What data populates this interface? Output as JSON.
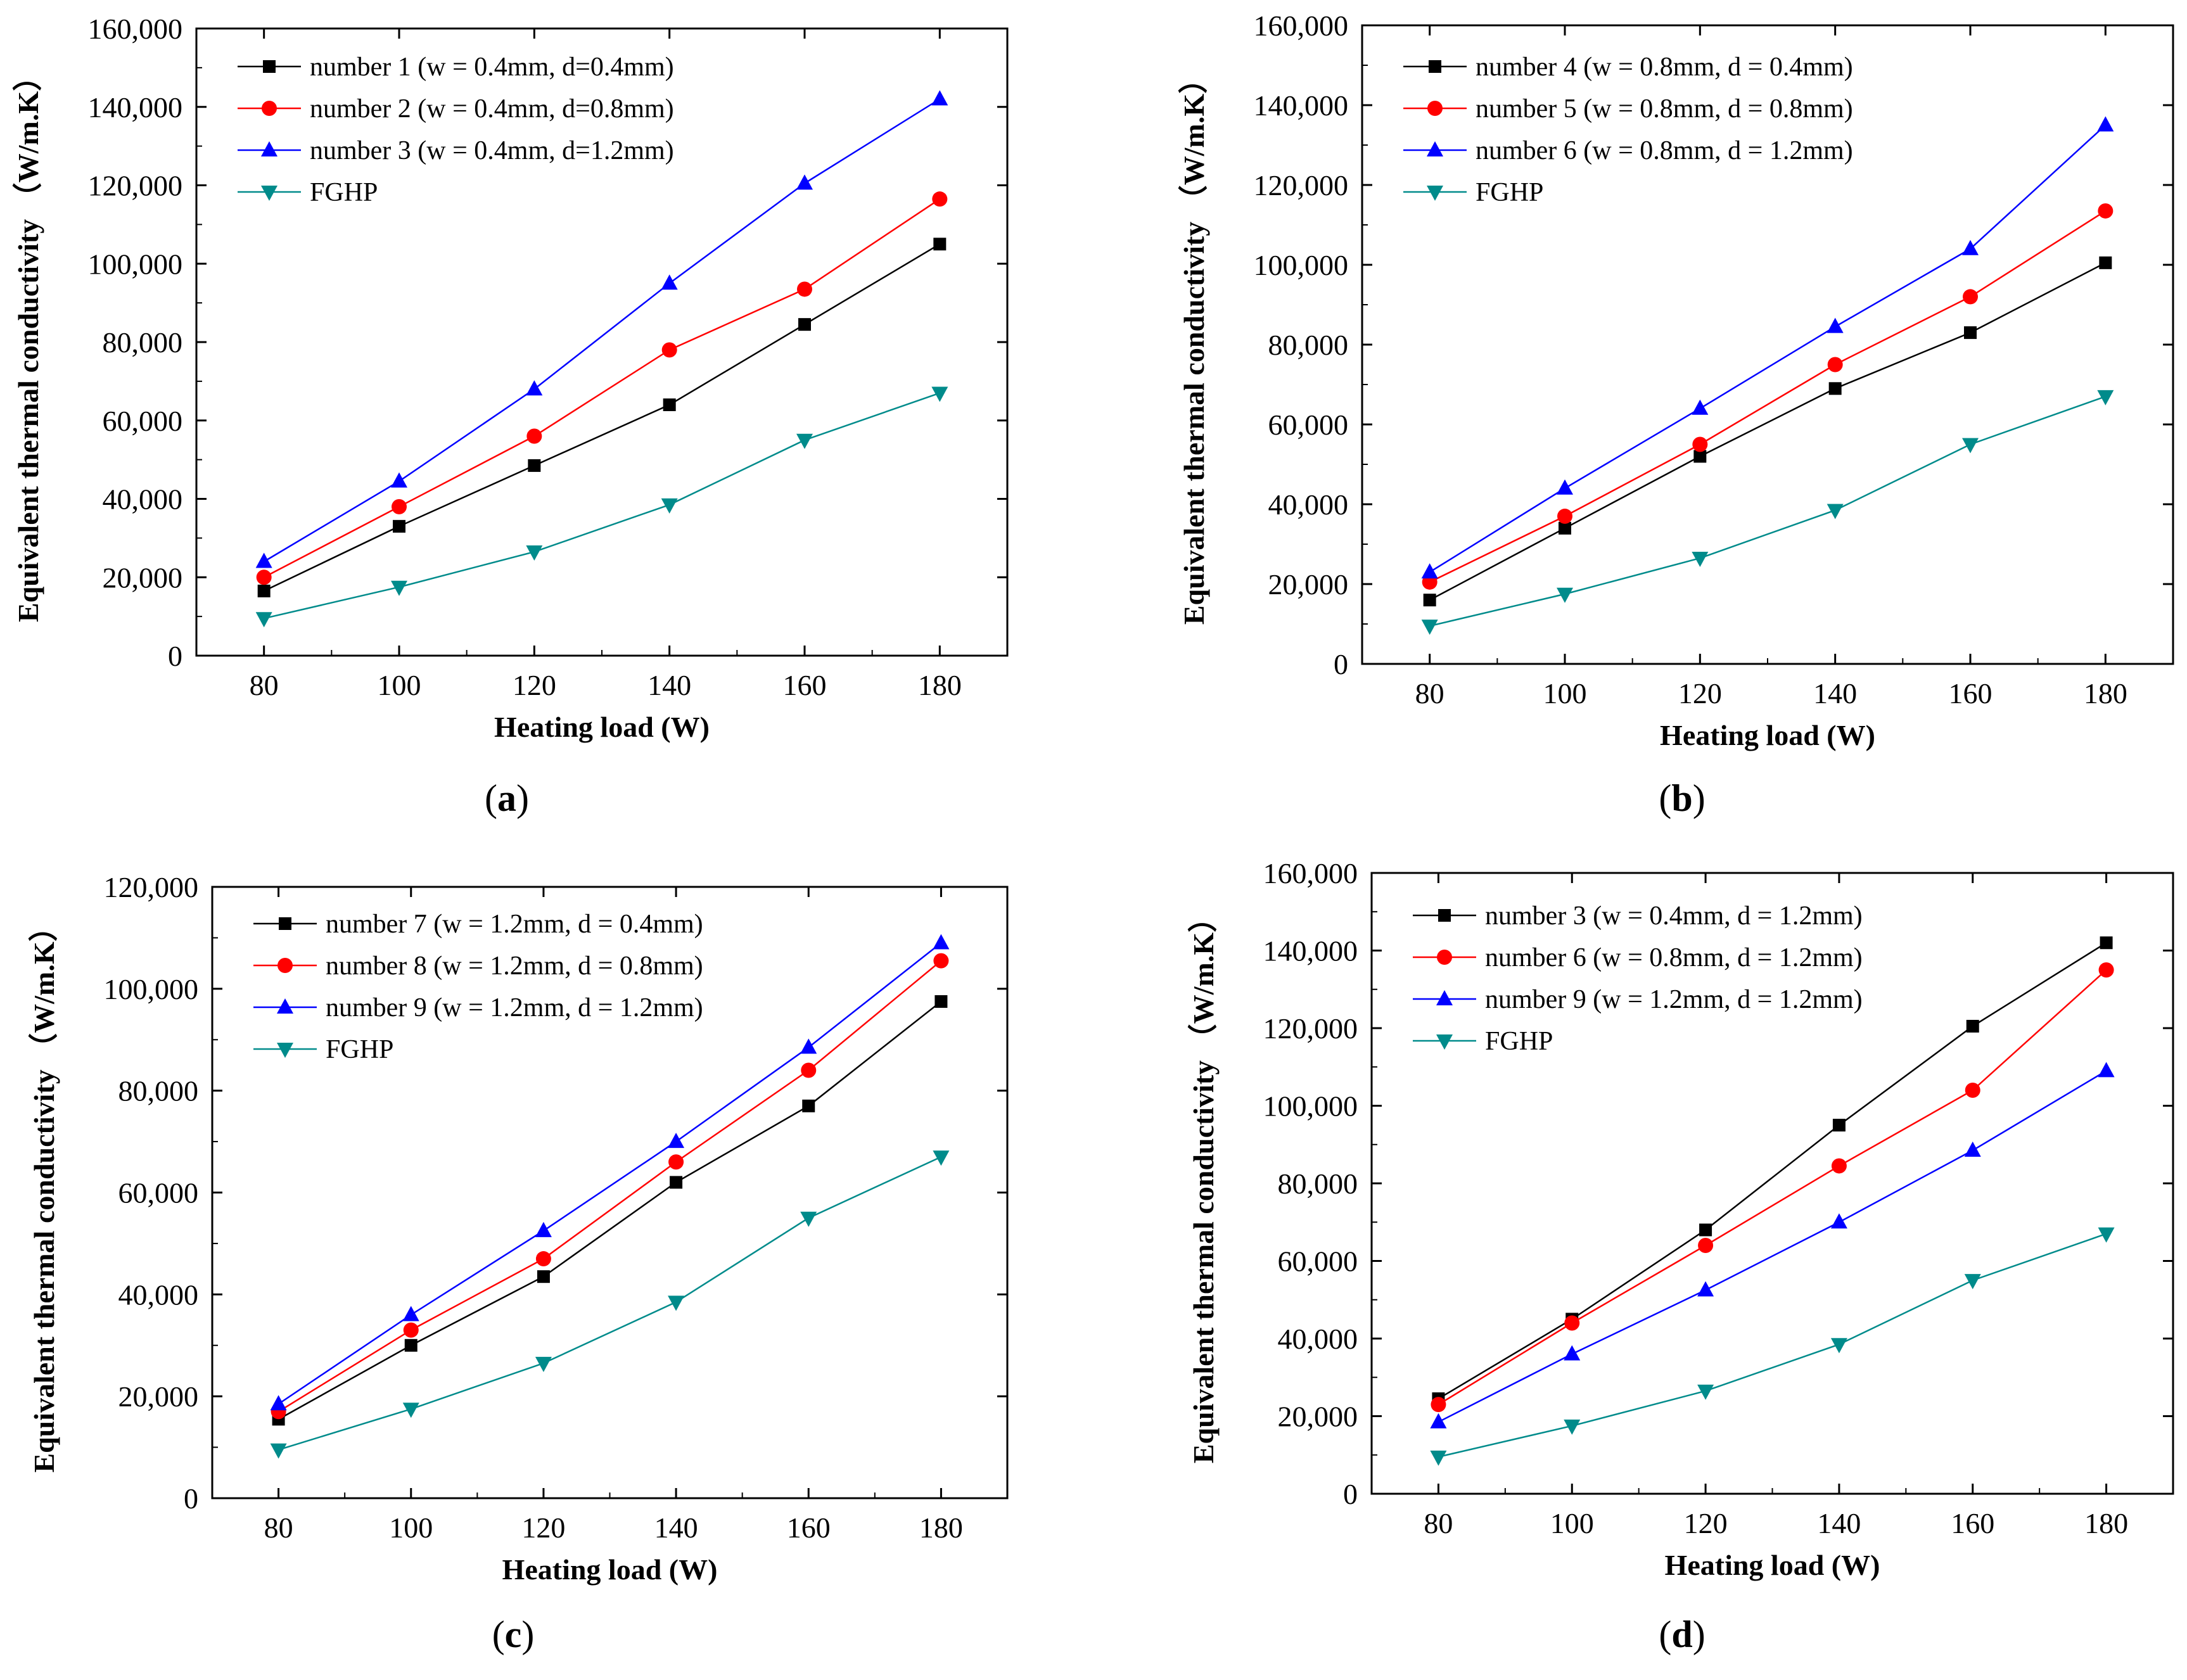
{
  "chart_data": [
    {
      "type": "line",
      "panel_caption": "(a)",
      "caption_open": "(",
      "caption_letter": "a",
      "caption_close": ")",
      "xlabel": "Heating load (W)",
      "ylabel": "Equivalent thermal conductivity （W/m.K）",
      "x": [
        80,
        100,
        120,
        140,
        160,
        180
      ],
      "xticks": [
        "80",
        "100",
        "120",
        "140",
        "160",
        "180"
      ],
      "xlim": [
        70,
        190
      ],
      "ylim": [
        0,
        160000
      ],
      "yticks": [
        "0",
        "20,000",
        "40,000",
        "60,000",
        "80,000",
        "100,000",
        "120,000",
        "140,000",
        "160,000"
      ],
      "grid": false,
      "legend_position": "top-left",
      "series": [
        {
          "name": "number 1 (w = 0.4mm, d=0.4mm)",
          "color": "#000000",
          "marker": "square",
          "values": [
            16500,
            33000,
            48500,
            64000,
            84500,
            105000
          ]
        },
        {
          "name": "number 2 (w = 0.4mm, d=0.8mm)",
          "color": "#ff0000",
          "marker": "circle",
          "values": [
            20000,
            38000,
            56000,
            78000,
            93500,
            116500
          ]
        },
        {
          "name": "number 3 (w = 0.4mm, d=1.2mm)",
          "color": "#0000ff",
          "marker": "triangle-up",
          "values": [
            24000,
            44500,
            68000,
            95000,
            120500,
            142000
          ]
        },
        {
          "name": "FGHP",
          "color": "#008b8b",
          "marker": "triangle-down",
          "values": [
            9500,
            17500,
            26500,
            38500,
            55000,
            67000
          ]
        }
      ]
    },
    {
      "type": "line",
      "panel_caption": "(b)",
      "caption_open": "(",
      "caption_letter": "b",
      "caption_close": ")",
      "xlabel": "Heating load (W)",
      "ylabel": "Equivalent thermal conductivity （W/m.K）",
      "x": [
        80,
        100,
        120,
        140,
        160,
        180
      ],
      "xticks": [
        "80",
        "100",
        "120",
        "140",
        "160",
        "180"
      ],
      "xlim": [
        70,
        190
      ],
      "ylim": [
        0,
        160000
      ],
      "yticks": [
        "0",
        "20,000",
        "40,000",
        "60,000",
        "80,000",
        "100,000",
        "120,000",
        "140,000",
        "160,000"
      ],
      "grid": false,
      "legend_position": "top-left",
      "series": [
        {
          "name": "number 4 (w = 0.8mm, d = 0.4mm)",
          "color": "#000000",
          "marker": "square",
          "values": [
            16000,
            34000,
            52000,
            69000,
            83000,
            100500
          ]
        },
        {
          "name": "number 5 (w = 0.8mm, d = 0.8mm)",
          "color": "#ff0000",
          "marker": "circle",
          "values": [
            20500,
            37000,
            55000,
            75000,
            92000,
            113500
          ]
        },
        {
          "name": "number 6 (w = 0.8mm, d = 1.2mm)",
          "color": "#0000ff",
          "marker": "triangle-up",
          "values": [
            23000,
            44000,
            64000,
            84500,
            104000,
            135000
          ]
        },
        {
          "name": "FGHP",
          "color": "#008b8b",
          "marker": "triangle-down",
          "values": [
            9500,
            17500,
            26500,
            38500,
            55000,
            67000
          ]
        }
      ]
    },
    {
      "type": "line",
      "panel_caption": "(c)",
      "caption_open": "(",
      "caption_letter": "c",
      "caption_close": ")",
      "xlabel": "Heating load (W)",
      "ylabel": "Equivalent thermal conductivity （W/m.K）",
      "x": [
        80,
        100,
        120,
        140,
        160,
        180
      ],
      "xticks": [
        "80",
        "100",
        "120",
        "140",
        "160",
        "180"
      ],
      "xlim": [
        70,
        190
      ],
      "ylim": [
        0,
        120000
      ],
      "yticks": [
        "0",
        "20,000",
        "40,000",
        "60,000",
        "80,000",
        "100,000",
        "120,000"
      ],
      "grid": false,
      "legend_position": "top-left",
      "series": [
        {
          "name": "number 7 (w = 1.2mm, d = 0.4mm)",
          "color": "#000000",
          "marker": "square",
          "values": [
            15500,
            30000,
            43500,
            62000,
            77000,
            97500
          ]
        },
        {
          "name": "number 8 (w = 1.2mm, d = 0.8mm)",
          "color": "#ff0000",
          "marker": "circle",
          "values": [
            17000,
            33000,
            47000,
            66000,
            84000,
            105500
          ]
        },
        {
          "name": "number 9 (w = 1.2mm, d = 1.2mm)",
          "color": "#0000ff",
          "marker": "triangle-up",
          "values": [
            18500,
            36000,
            52500,
            70000,
            88500,
            109000
          ]
        },
        {
          "name": "FGHP",
          "color": "#008b8b",
          "marker": "triangle-down",
          "values": [
            9500,
            17500,
            26500,
            38500,
            55000,
            67000
          ]
        }
      ]
    },
    {
      "type": "line",
      "panel_caption": "(d)",
      "caption_open": "(",
      "caption_letter": "d",
      "caption_close": ")",
      "xlabel": "Heating load (W)",
      "ylabel": "Equivalent thermal conductivity （W/m.K）",
      "x": [
        80,
        100,
        120,
        140,
        160,
        180
      ],
      "xticks": [
        "80",
        "100",
        "120",
        "140",
        "160",
        "180"
      ],
      "xlim": [
        70,
        190
      ],
      "ylim": [
        0,
        160000
      ],
      "yticks": [
        "0",
        "20,000",
        "40,000",
        "60,000",
        "80,000",
        "100,000",
        "120,000",
        "140,000",
        "160,000"
      ],
      "grid": false,
      "legend_position": "top-left",
      "series": [
        {
          "name": "number 3 (w = 0.4mm, d = 1.2mm)",
          "color": "#000000",
          "marker": "square",
          "values": [
            24500,
            45000,
            68000,
            95000,
            120500,
            142000
          ]
        },
        {
          "name": "number 6 (w = 0.8mm, d = 1.2mm)",
          "color": "#ff0000",
          "marker": "circle",
          "values": [
            23000,
            44000,
            64000,
            84500,
            104000,
            135000
          ]
        },
        {
          "name": "number 9 (w = 1.2mm, d = 1.2mm)",
          "color": "#0000ff",
          "marker": "triangle-up",
          "values": [
            18500,
            36000,
            52500,
            70000,
            88500,
            109000
          ]
        },
        {
          "name": "FGHP",
          "color": "#008b8b",
          "marker": "triangle-down",
          "values": [
            9500,
            17500,
            26500,
            38500,
            55000,
            67000
          ]
        }
      ]
    }
  ]
}
